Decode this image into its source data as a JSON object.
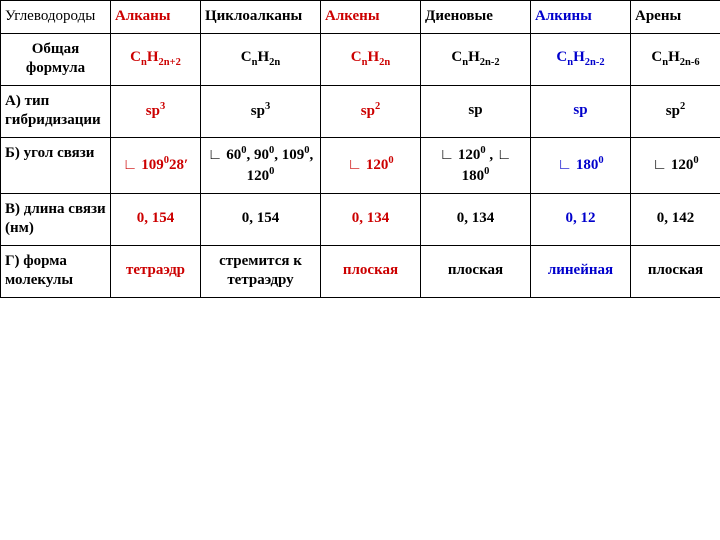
{
  "colors": {
    "red": "#cc0000",
    "blue": "#0000cc",
    "black": "#000000"
  },
  "header": {
    "rowLabel": "Углеводороды",
    "cols": [
      {
        "text": "Алканы",
        "cls": "red"
      },
      {
        "text": "Циклоалканы",
        "cls": ""
      },
      {
        "text": "Алкены",
        "cls": "red"
      },
      {
        "text": "Диеновые",
        "cls": ""
      },
      {
        "text": "Алкины",
        "cls": "blue"
      },
      {
        "text": "Арены",
        "cls": ""
      }
    ]
  },
  "rows": {
    "formula": {
      "label": "Общая формула",
      "vals": [
        {
          "html": "C<sub>n</sub>H<sub>2n+2</sub>",
          "cls": "red"
        },
        {
          "html": "C<sub>n</sub>H<sub>2n</sub>",
          "cls": ""
        },
        {
          "html": "C<sub>n</sub>H<sub>2n</sub>",
          "cls": "red"
        },
        {
          "html": "C<sub>n</sub>H<sub>2n-2</sub>",
          "cls": ""
        },
        {
          "html": "C<sub>n</sub>H<sub>2n-2</sub>",
          "cls": "blue"
        },
        {
          "html": "C<sub>n</sub>H<sub>2n-6</sub>",
          "cls": ""
        }
      ]
    },
    "hybrid": {
      "label": "А) тип гибридизации",
      "vals": [
        {
          "html": "sp<sup>3</sup>",
          "cls": "red"
        },
        {
          "html": "sp<sup>3</sup>",
          "cls": ""
        },
        {
          "html": "sp<sup>2</sup>",
          "cls": "red"
        },
        {
          "html": "sp",
          "cls": ""
        },
        {
          "html": "sp",
          "cls": "blue"
        },
        {
          "html": "sp<sup>2</sup>",
          "cls": ""
        }
      ]
    },
    "angle": {
      "label": "Б) угол связи",
      "vals": [
        {
          "html": "∟ 109<sup>0</sup>28′",
          "cls": "red"
        },
        {
          "html": "∟ 60<sup>0</sup>, 90<sup>0</sup>, 109<sup>0</sup>, 120<sup>0</sup>",
          "cls": ""
        },
        {
          "html": "∟ 120<sup>0</sup>",
          "cls": "red"
        },
        {
          "html": "∟ 120<sup>0</sup> , ∟ 180<sup>0</sup>",
          "cls": ""
        },
        {
          "html": "∟ 180<sup>0</sup>",
          "cls": "blue"
        },
        {
          "html": "∟ 120<sup>0</sup>",
          "cls": ""
        }
      ]
    },
    "length": {
      "label": "В) длина связи (нм)",
      "vals": [
        {
          "html": "0, 154",
          "cls": "red"
        },
        {
          "html": "0, 154",
          "cls": ""
        },
        {
          "html": "0, 134",
          "cls": "red"
        },
        {
          "html": "0, 134",
          "cls": ""
        },
        {
          "html": "0, 12",
          "cls": "blue"
        },
        {
          "html": "0, 142",
          "cls": ""
        }
      ]
    },
    "shape": {
      "label": "Г) форма молекулы",
      "vals": [
        {
          "html": "тетраэдр",
          "cls": "red"
        },
        {
          "html": "стремится к тетраэдру",
          "cls": ""
        },
        {
          "html": "плоская",
          "cls": "red"
        },
        {
          "html": "плоская",
          "cls": ""
        },
        {
          "html": "линейная",
          "cls": "blue"
        },
        {
          "html": "плоская",
          "cls": ""
        }
      ]
    }
  }
}
